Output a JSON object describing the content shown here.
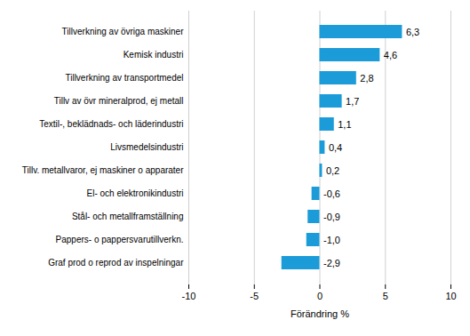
{
  "chart_data": {
    "type": "bar",
    "orientation": "horizontal",
    "categories": [
      "Tillverkning av övriga maskiner",
      "Kemisk industri",
      "Tillverkning av transportmedel",
      "Tillv av övr mineralprod, ej metall",
      "Textil-, beklädnads- och läderindustri",
      "Livsmedelsindustri",
      "Tillv. metallvaror, ej maskiner o apparater",
      "El- och elektronikindustri",
      "Stål- och metallframställning",
      "Pappers- o pappersvarutillverkn.",
      "Graf prod o reprod av inspelningar"
    ],
    "values": [
      6.3,
      4.6,
      2.8,
      1.7,
      1.1,
      0.4,
      0.2,
      -0.6,
      -0.9,
      -1.0,
      -2.9
    ],
    "value_labels": [
      "6,3",
      "4,6",
      "2,8",
      "1,7",
      "1,1",
      "0,4",
      "0,2",
      "-0,6",
      "-0,9",
      "-1,0",
      "-2,9"
    ],
    "data_labels": true,
    "color": "#1b9cd8",
    "xlabel": "Förändring %",
    "xlim": [
      -10,
      10
    ],
    "xticks": [
      -10,
      -5,
      0,
      5,
      10
    ],
    "grid": true
  }
}
